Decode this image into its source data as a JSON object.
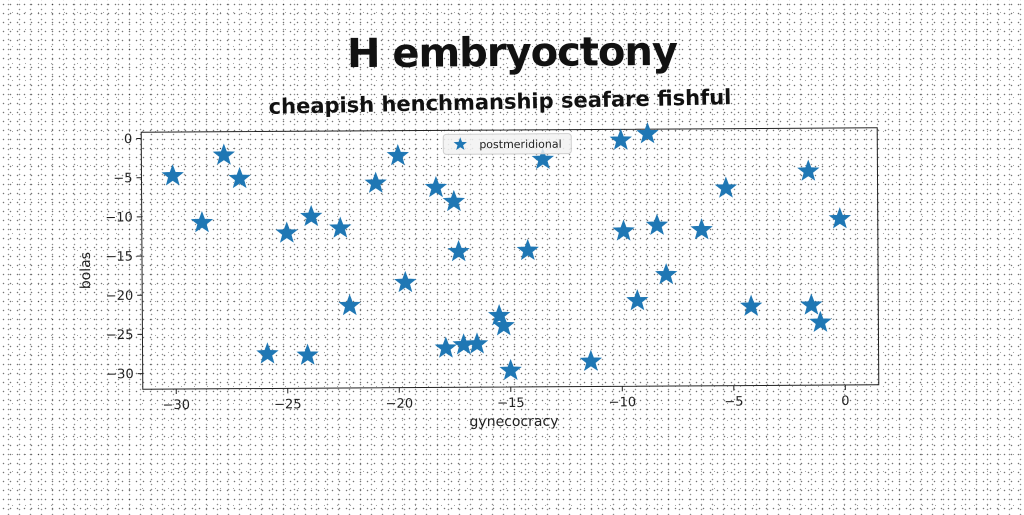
{
  "chart_data": {
    "type": "scatter",
    "title": "H embryoctony",
    "subtitle": "cheapish henchmanship seafare fishful",
    "xlabel": "gynecocracy",
    "ylabel": "bolas",
    "xlim": [
      -31.5,
      1.5
    ],
    "ylim": [
      -32,
      0.8
    ],
    "xticks": [
      -30,
      -25,
      -20,
      -15,
      -10,
      -5,
      0
    ],
    "yticks": [
      0,
      -5,
      -10,
      -15,
      -20,
      -25,
      -30
    ],
    "marker": "star",
    "grid": false,
    "legend_position": "top-center",
    "series": [
      {
        "name": "postmeridional",
        "color": "#1f77b4",
        "points": [
          [
            -30.1,
            -4.8
          ],
          [
            -28.8,
            -10.8
          ],
          [
            -27.8,
            -2.2
          ],
          [
            -27.1,
            -5.2
          ],
          [
            -25.9,
            -27.6
          ],
          [
            -25.0,
            -12.2
          ],
          [
            -24.1,
            -27.8
          ],
          [
            -23.9,
            -10.1
          ],
          [
            -22.6,
            -11.6
          ],
          [
            -22.2,
            -21.5
          ],
          [
            -21.0,
            -5.9
          ],
          [
            -20.0,
            -2.4
          ],
          [
            -19.7,
            -18.6
          ],
          [
            -18.3,
            -6.5
          ],
          [
            -17.5,
            -8.3
          ],
          [
            -17.9,
            -27.0
          ],
          [
            -17.3,
            -14.7
          ],
          [
            -17.1,
            -26.6
          ],
          [
            -16.5,
            -26.5
          ],
          [
            -15.5,
            -22.9
          ],
          [
            -15.3,
            -24.2
          ],
          [
            -15.0,
            -29.9
          ],
          [
            -14.2,
            -14.6
          ],
          [
            -13.5,
            -3.0
          ],
          [
            -11.4,
            -28.8
          ],
          [
            -10.0,
            -0.6
          ],
          [
            -9.9,
            -12.2
          ],
          [
            -9.3,
            -21.1
          ],
          [
            -8.8,
            0.2
          ],
          [
            -8.4,
            -11.5
          ],
          [
            -8.0,
            -17.8
          ],
          [
            -6.4,
            -12.1
          ],
          [
            -5.3,
            -6.8
          ],
          [
            -4.2,
            -21.9
          ],
          [
            -1.6,
            -4.7
          ],
          [
            -1.5,
            -21.8
          ],
          [
            -1.1,
            -24.0
          ],
          [
            -0.2,
            -10.8
          ]
        ]
      }
    ]
  }
}
